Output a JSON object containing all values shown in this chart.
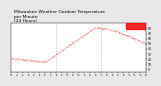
{
  "title": "Milwaukee Weather Outdoor Temperature\nper Minute\n(24 Hours)",
  "bg_color": "#e8e8e8",
  "plot_bg": "#ffffff",
  "dot_color": "#dd0000",
  "highlight_color": "#ff0000",
  "ylim": [
    -5,
    90
  ],
  "xlim": [
    0,
    1440
  ],
  "num_points": 1440,
  "vline_x": [
    480,
    960
  ],
  "vline_color": "#aaaaaa",
  "title_fontsize": 3.2,
  "ytick_labels": [
    "0",
    "10",
    "20",
    "30",
    "40",
    "50",
    "60",
    "70",
    "80"
  ],
  "ytick_vals": [
    0,
    10,
    20,
    30,
    40,
    50,
    60,
    70,
    80
  ],
  "highlight_xmin": 0.855,
  "highlight_xmax": 1.0,
  "highlight_ymin": 78,
  "highlight_ymax": 90
}
